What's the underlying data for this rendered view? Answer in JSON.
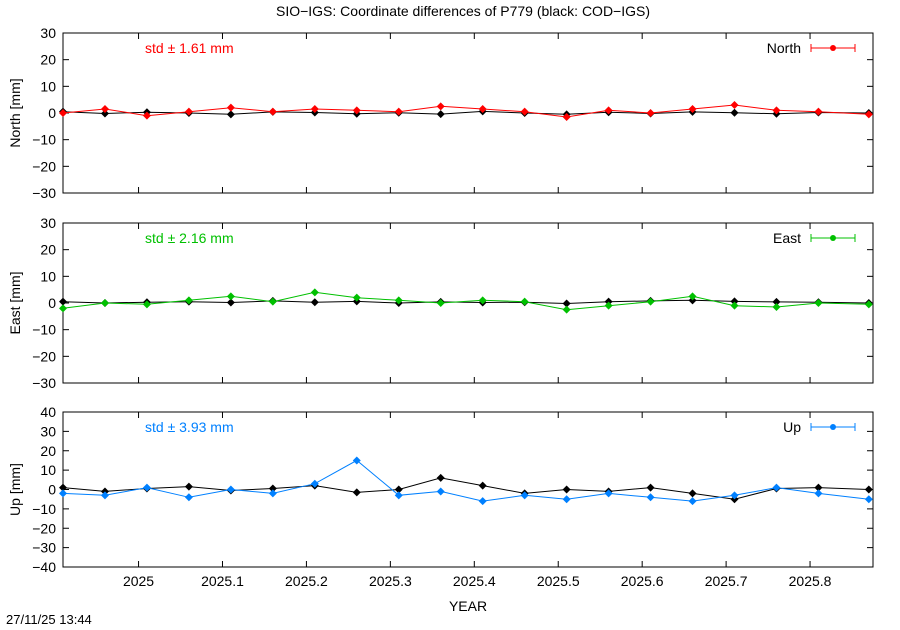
{
  "title": "SIO−IGS: Coordinate differences of P779 (black: COD−IGS)",
  "footer_timestamp": "27/11/25 13:44",
  "xlabel": "YEAR",
  "x_ticks": [
    "2025",
    "2025.1",
    "2025.2",
    "2025.3",
    "2025.4",
    "2025.5",
    "2025.6",
    "2025.7",
    "2025.8"
  ],
  "chart_data": [
    {
      "type": "line",
      "ylabel": "North [mm]",
      "ylim": [
        -30,
        30
      ],
      "yticks": [
        -30,
        -20,
        -10,
        0,
        10,
        20,
        30
      ],
      "xlim": [
        2024.91,
        2025.875
      ],
      "std_text": "std ± 1.61 mm",
      "legend_label": "North",
      "legend_position": "top-right",
      "color": "#ff0000",
      "black_series": {
        "name": "COD−IGS",
        "x": [
          2024.91,
          2024.96,
          2025.01,
          2025.06,
          2025.11,
          2025.16,
          2025.21,
          2025.26,
          2025.31,
          2025.36,
          2025.41,
          2025.46,
          2025.51,
          2025.56,
          2025.61,
          2025.66,
          2025.71,
          2025.76,
          2025.81,
          2025.87
        ],
        "y": [
          0.5,
          -0.2,
          0.3,
          0.0,
          -0.5,
          0.4,
          0.2,
          -0.3,
          0.1,
          -0.4,
          0.6,
          0.0,
          -0.5,
          0.3,
          -0.2,
          0.4,
          0.1,
          -0.3,
          0.2,
          0.0
        ]
      },
      "series": [
        {
          "x": [
            2024.91,
            2024.96,
            2025.01,
            2025.06,
            2025.11,
            2025.16,
            2025.21,
            2025.26,
            2025.31,
            2025.36,
            2025.41,
            2025.46,
            2025.51,
            2025.56,
            2025.61,
            2025.66,
            2025.71,
            2025.76,
            2025.81,
            2025.87
          ],
          "y": [
            0.0,
            1.5,
            -1.0,
            0.5,
            2.0,
            0.5,
            1.5,
            1.0,
            0.5,
            2.5,
            1.5,
            0.5,
            -1.5,
            1.0,
            0.0,
            1.5,
            3.0,
            1.0,
            0.5,
            -0.5
          ]
        }
      ]
    },
    {
      "type": "line",
      "ylabel": "East [mm]",
      "ylim": [
        -30,
        30
      ],
      "yticks": [
        -30,
        -20,
        -10,
        0,
        10,
        20,
        30
      ],
      "xlim": [
        2024.91,
        2025.875
      ],
      "std_text": "std ± 2.16 mm",
      "legend_label": "East",
      "legend_position": "top-right",
      "color": "#00c000",
      "black_series": {
        "name": "COD−IGS",
        "x": [
          2024.91,
          2024.96,
          2025.01,
          2025.06,
          2025.11,
          2025.16,
          2025.21,
          2025.26,
          2025.31,
          2025.36,
          2025.41,
          2025.46,
          2025.51,
          2025.56,
          2025.61,
          2025.66,
          2025.71,
          2025.76,
          2025.81,
          2025.87
        ],
        "y": [
          0.5,
          0.0,
          0.3,
          0.5,
          0.2,
          0.8,
          0.3,
          0.6,
          0.0,
          0.4,
          0.2,
          0.3,
          -0.2,
          0.5,
          0.8,
          1.0,
          0.6,
          0.4,
          0.3,
          0.0
        ]
      },
      "series": [
        {
          "x": [
            2024.91,
            2024.96,
            2025.01,
            2025.06,
            2025.11,
            2025.16,
            2025.21,
            2025.26,
            2025.31,
            2025.36,
            2025.41,
            2025.46,
            2025.51,
            2025.56,
            2025.61,
            2025.66,
            2025.71,
            2025.76,
            2025.81,
            2025.87
          ],
          "y": [
            -2.0,
            0.0,
            -0.5,
            1.0,
            2.5,
            0.5,
            4.0,
            2.0,
            1.0,
            0.0,
            1.0,
            0.5,
            -2.5,
            -1.0,
            0.5,
            2.5,
            -1.0,
            -1.5,
            0.0,
            -0.5
          ]
        }
      ]
    },
    {
      "type": "line",
      "ylabel": "Up [mm]",
      "ylim": [
        -40,
        40
      ],
      "yticks": [
        -40,
        -30,
        -20,
        -10,
        0,
        10,
        20,
        30,
        40
      ],
      "xlim": [
        2024.91,
        2025.875
      ],
      "std_text": "std ± 3.93 mm",
      "legend_label": "Up",
      "legend_position": "top-right",
      "color": "#0080ff",
      "black_series": {
        "name": "COD−IGS",
        "x": [
          2024.91,
          2024.96,
          2025.01,
          2025.06,
          2025.11,
          2025.16,
          2025.21,
          2025.26,
          2025.31,
          2025.36,
          2025.41,
          2025.46,
          2025.51,
          2025.56,
          2025.61,
          2025.66,
          2025.71,
          2025.76,
          2025.81,
          2025.87
        ],
        "y": [
          1.0,
          -1.0,
          0.5,
          1.5,
          -0.5,
          0.5,
          2.0,
          -1.5,
          0.0,
          6.0,
          2.0,
          -2.0,
          0.0,
          -1.0,
          1.0,
          -2.0,
          -5.0,
          0.5,
          1.0,
          0.0
        ]
      },
      "series": [
        {
          "x": [
            2024.91,
            2024.96,
            2025.01,
            2025.06,
            2025.11,
            2025.16,
            2025.21,
            2025.26,
            2025.31,
            2025.36,
            2025.41,
            2025.46,
            2025.51,
            2025.56,
            2025.61,
            2025.66,
            2025.71,
            2025.76,
            2025.81,
            2025.87
          ],
          "y": [
            -2.0,
            -3.0,
            1.0,
            -4.0,
            0.0,
            -2.0,
            3.0,
            15.0,
            -3.0,
            -1.0,
            -6.0,
            -3.0,
            -5.0,
            -2.0,
            -4.0,
            -6.0,
            -3.0,
            1.0,
            -2.0,
            -5.0
          ]
        }
      ]
    }
  ]
}
